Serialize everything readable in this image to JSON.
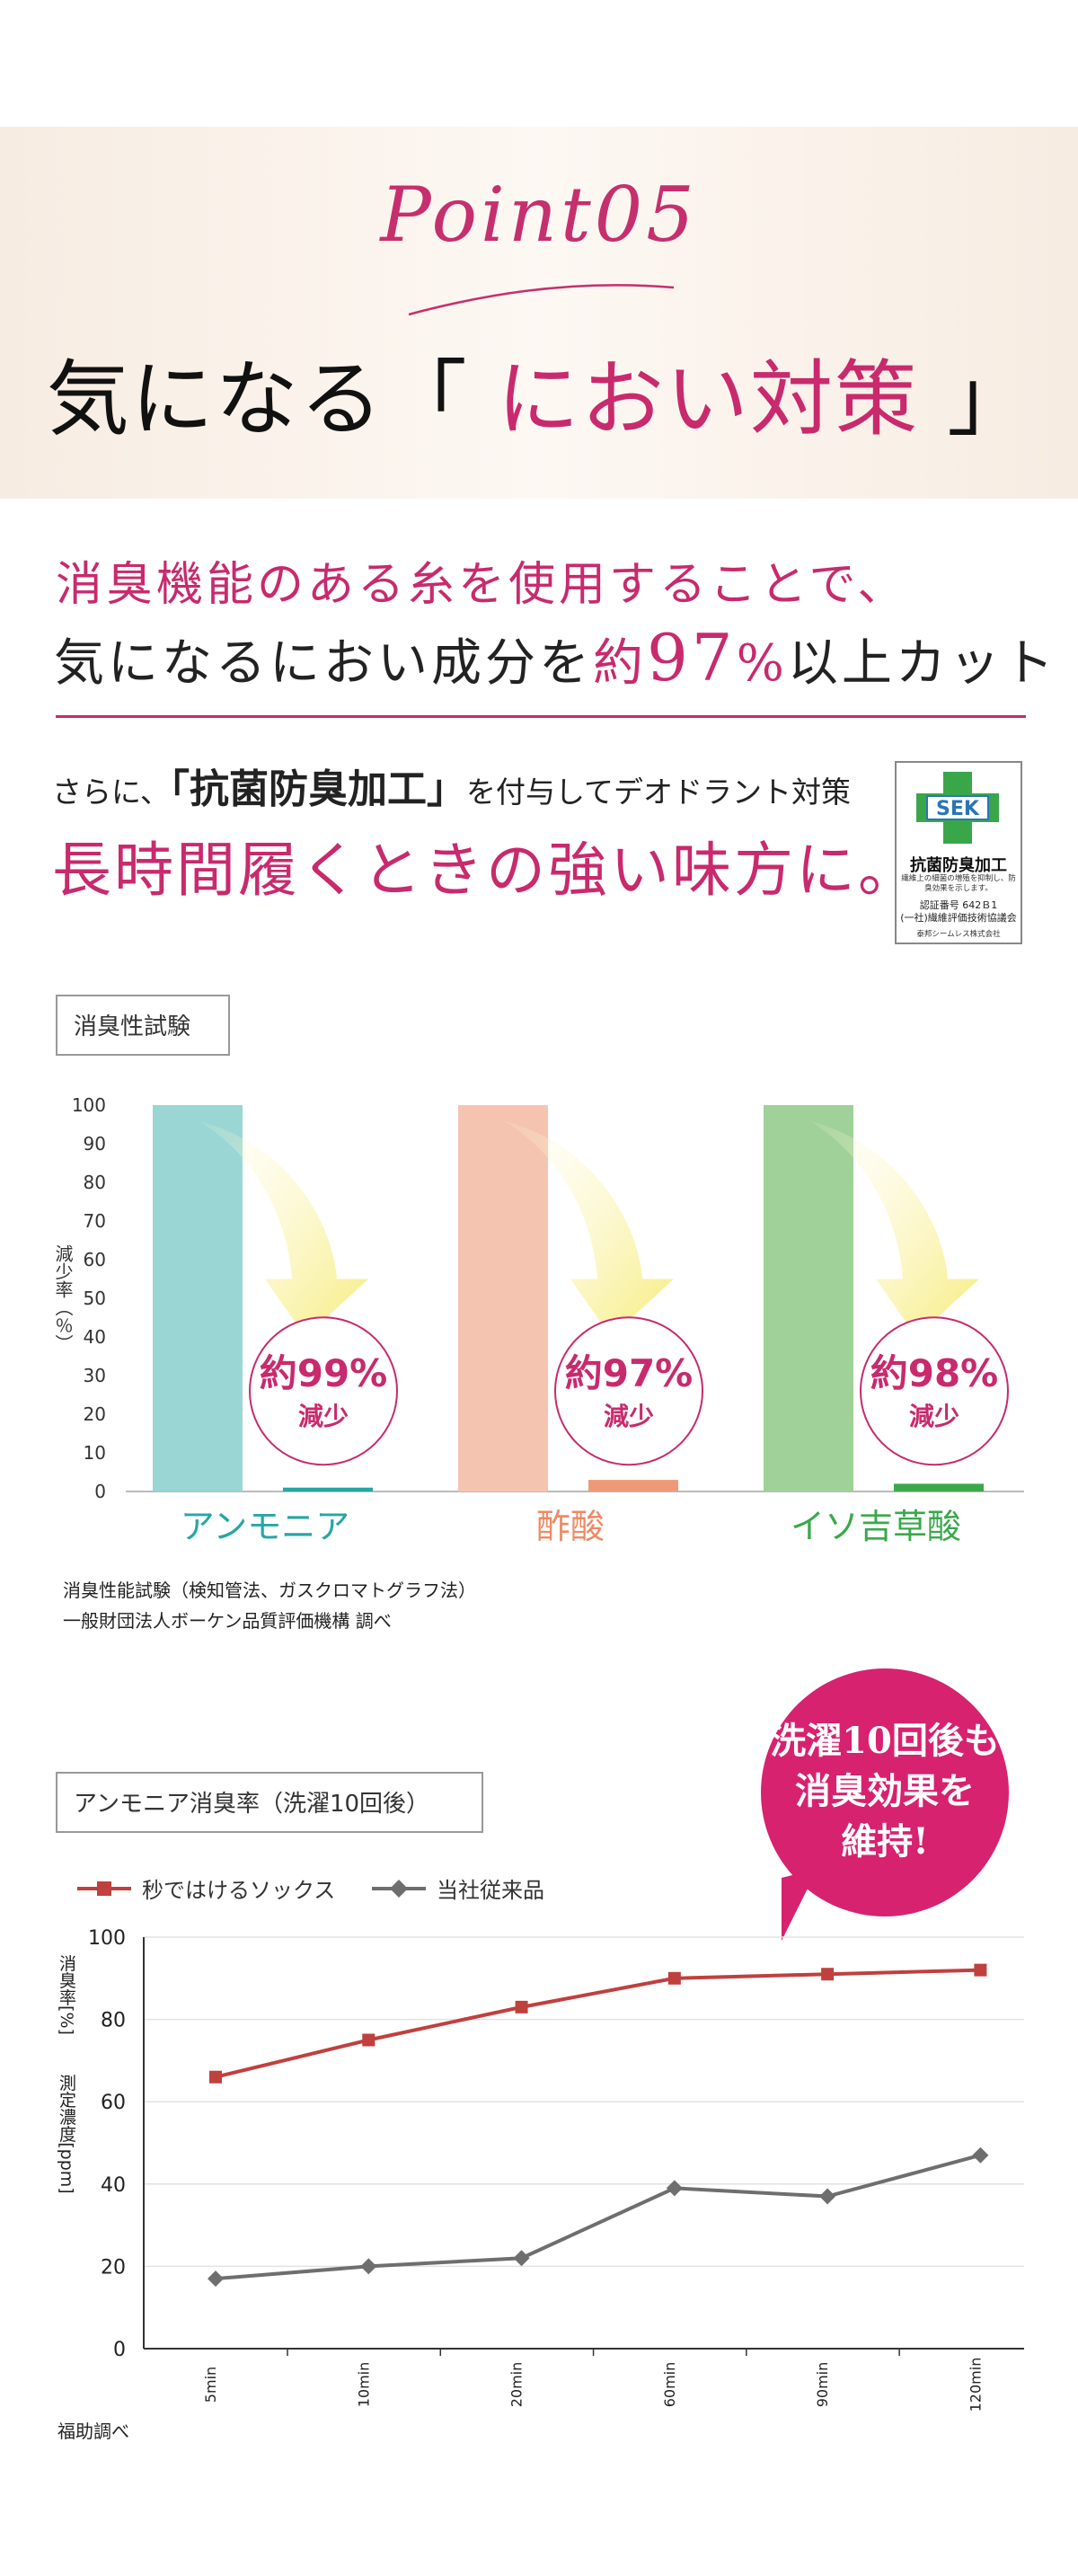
{
  "hero": {
    "point": "Point05",
    "heading_prefix": "気になる「",
    "heading_em": " におい対策 ",
    "heading_suffix": "」"
  },
  "lead": {
    "line1": "消臭機能のある糸を使用することで、",
    "line2_a": "気になるにおい成分を",
    "line2_b": "約",
    "line2_num": "97",
    "line2_pct": "%",
    "line2_c": "以上カット"
  },
  "sub": {
    "line1_a": "さらに、",
    "line1_b": "「抗菌防臭加工」",
    "line1_c": "を付与してデオドラント対策",
    "line2": "長時間履くときの強い味方に。"
  },
  "sek": {
    "logo": "SEK",
    "title": "抗菌防臭加工",
    "desc": "繊維上の細菌の増殖を抑制し、防臭効果を示します。",
    "cert": "認証番号 642Ｂ1",
    "org": "(一社)繊維評価技術協議会",
    "company": "泰邦シームレス株式会社",
    "colors": {
      "green": "#3aa64a",
      "blue": "#2a74b8"
    }
  },
  "bar_section": {
    "label": "消臭性試験",
    "note1": "消臭性能試験（検知管法、ガスクロマトグラフ法）",
    "note2": "一般財団法人ボーケン品質評価機構 調べ"
  },
  "line_section": {
    "label": "アンモニア消臭率（洗濯10回後）",
    "note": "福助調べ"
  },
  "bubble": {
    "line1": "洗濯10回後も",
    "line2": "消臭効果を",
    "line3": "維持!",
    "color": "#d7226f"
  },
  "chart_data": [
    {
      "type": "bar",
      "ylabel": "減少率（％）",
      "ylim": [
        0,
        100
      ],
      "yticks": [
        "0",
        "10",
        "20",
        "30",
        "40",
        "50",
        "60",
        "70",
        "80",
        "90",
        "100"
      ],
      "categories": [
        "アンモニア",
        "酢酸",
        "イソ吉草酸"
      ],
      "series": [
        {
          "values": [
            100,
            100,
            100
          ],
          "colors": [
            "#9ad6d3",
            "#f5c4b0",
            "#9fd199"
          ]
        },
        {
          "values": [
            1,
            3,
            2
          ],
          "colors": [
            "#26a6a4",
            "#ee9a78",
            "#3aa84b"
          ]
        }
      ],
      "reduction_labels": [
        "約99%",
        "約97%",
        "約98%"
      ],
      "reduction_word": "減少",
      "category_colors": [
        "#26a6a4",
        "#ee8a65",
        "#3aa84b"
      ]
    },
    {
      "type": "line",
      "ylabel": "消臭率[%]",
      "ylabel2": "測定濃度[ppm]",
      "ylim": [
        0,
        100
      ],
      "yticks": [
        "0",
        "20",
        "40",
        "60",
        "80",
        "100"
      ],
      "x": [
        "5min",
        "10min",
        "20min",
        "60min",
        "90min",
        "120min"
      ],
      "grid": true,
      "legend": "top-left",
      "series": [
        {
          "name": "秒ではけるソックス",
          "values": [
            66,
            75,
            83,
            90,
            91,
            92
          ],
          "color": "#c0403e"
        },
        {
          "name": "当社従来品",
          "values": [
            17,
            20,
            22,
            39,
            37,
            47
          ],
          "color": "#6e6e6e"
        }
      ]
    }
  ]
}
